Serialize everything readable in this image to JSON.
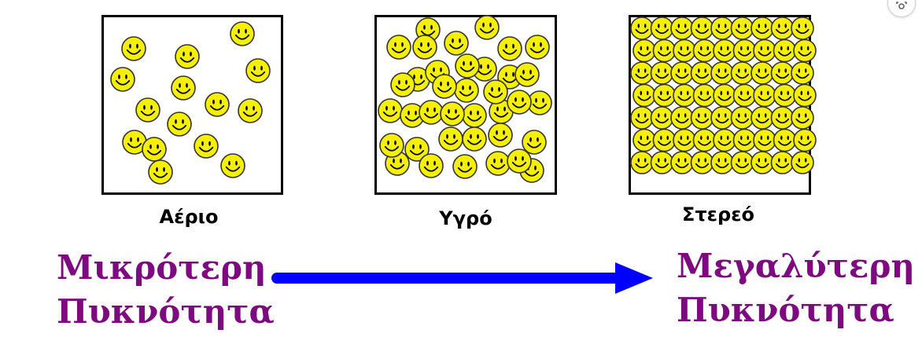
{
  "states": [
    {
      "id": "gas",
      "label": "Αέριο",
      "particles": 15
    },
    {
      "id": "liquid",
      "label": "Υγρό",
      "particles": 37
    },
    {
      "id": "solid",
      "label": "Στερεό",
      "particles": 63
    }
  ],
  "density": {
    "low": {
      "line1": "Μικρότερη",
      "line2": "Πυκνότητα"
    },
    "high": {
      "line1": "Μεγαλύτερη",
      "line2": "Πυκνότητα"
    }
  },
  "colors": {
    "density_text": "#7d0a7f",
    "arrow": "#0000ff",
    "smiley_fill": "#f5ef00",
    "smiley_outline": "#333333",
    "box_border": "#000000"
  },
  "icons": {
    "particle": "smiley-face-icon",
    "corner": "lens-icon"
  }
}
